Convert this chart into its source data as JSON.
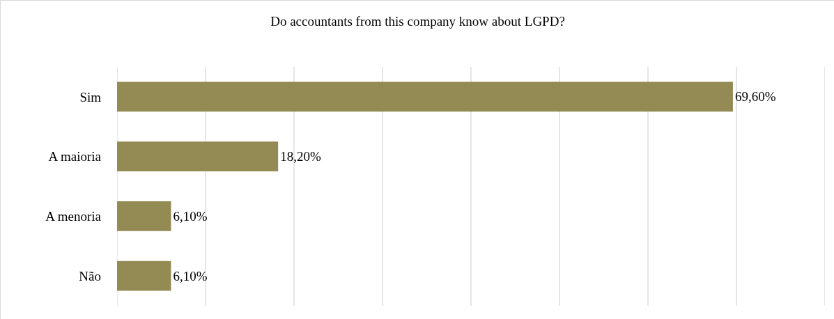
{
  "chart_data": {
    "type": "bar",
    "orientation": "horizontal",
    "title": "Do accountants from this company know about LGPD?",
    "categories": [
      "Sim",
      "A maioria",
      "A menoria",
      "Não"
    ],
    "values": [
      69.6,
      18.2,
      6.1,
      6.1
    ],
    "value_labels": [
      "69,60%",
      "18,20%",
      "6,10%",
      "6,10%"
    ],
    "color": "#948a54",
    "xlim": [
      0,
      80
    ],
    "xticks": [
      {
        "value": 0,
        "label": null
      },
      {
        "value": 10,
        "label": null
      },
      {
        "value": 20,
        "label": null
      },
      {
        "value": 30,
        "label": null
      },
      {
        "value": 40,
        "label": null
      },
      {
        "value": 50,
        "label": null
      },
      {
        "value": 60,
        "label": null
      },
      {
        "value": 70,
        "label": null
      },
      {
        "value": 80,
        "label": null
      }
    ],
    "grid": "x",
    "tick_labels": "y"
  }
}
